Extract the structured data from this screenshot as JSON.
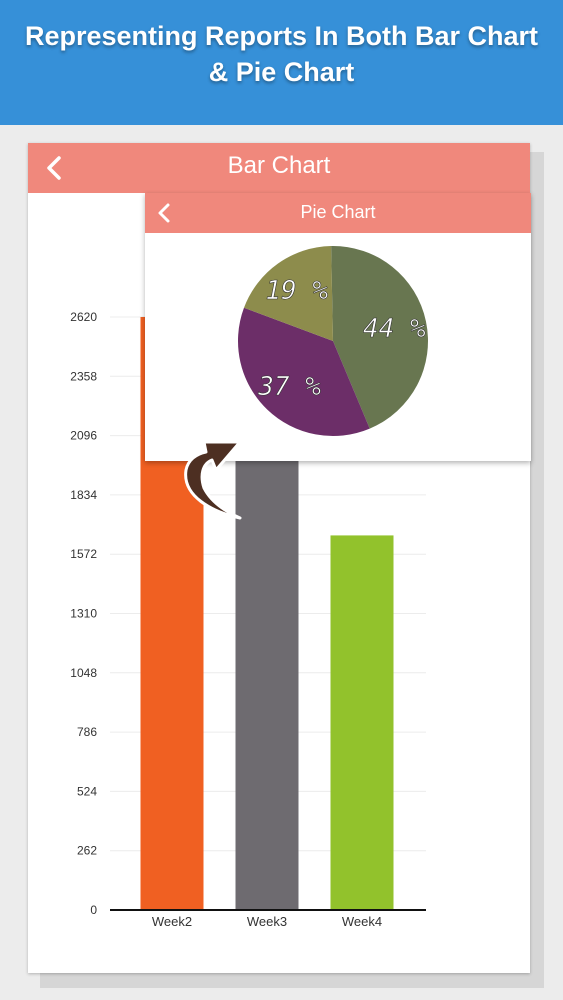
{
  "banner": {
    "line1": "Representing Reports In Both Bar Chart",
    "line2": "& Pie Chart"
  },
  "bar_screen": {
    "title": "Bar Chart",
    "back_icon": "chevron-left-icon"
  },
  "pie_screen": {
    "title": "Pie Chart",
    "back_icon": "chevron-left-icon"
  },
  "colors": {
    "banner": "#3690d8",
    "header": "#f0887c",
    "week2": "#f06022",
    "week3": "#6e6b70",
    "week4": "#92c22c",
    "pie_44": "#687650",
    "pie_37": "#6c2e68",
    "pie_19": "#8d8c4c",
    "arrow": "#4d2f22"
  },
  "chart_data": [
    {
      "type": "bar",
      "title": "",
      "categories": [
        "Week2",
        "Week3",
        "Week4"
      ],
      "values": [
        2620,
        2096,
        1655
      ],
      "yticks": [
        0,
        262,
        524,
        786,
        1048,
        1310,
        1572,
        1834,
        2096,
        2358,
        2620
      ],
      "ylim": [
        0,
        2620
      ],
      "grid": true
    },
    {
      "type": "pie",
      "title": "",
      "slices": [
        {
          "label": "44 %",
          "value": 44
        },
        {
          "label": "37 %",
          "value": 37
        },
        {
          "label": "19 %",
          "value": 19
        }
      ]
    }
  ]
}
